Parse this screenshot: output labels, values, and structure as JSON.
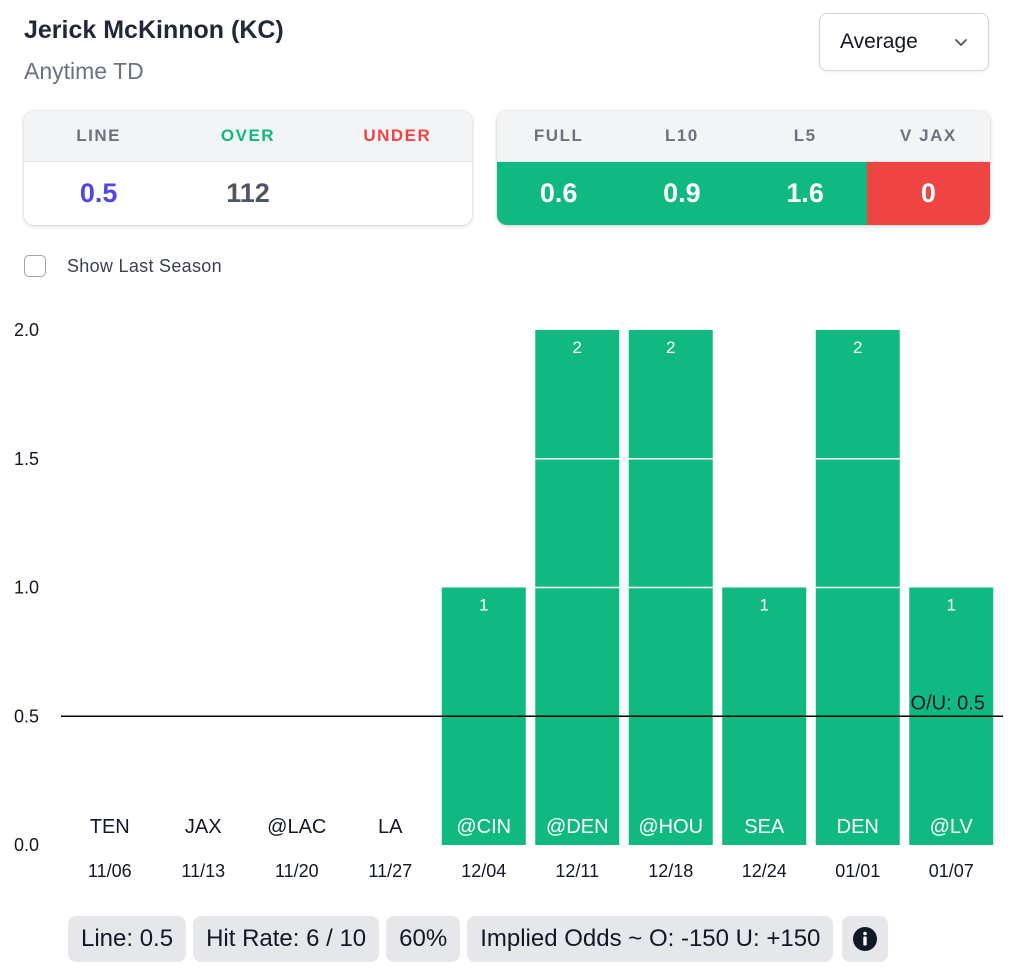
{
  "header": {
    "player_name": "Jerick McKinnon (KC)",
    "market": "Anytime TD",
    "dropdown_value": "Average",
    "dropdown_icon": "chevron-down-icon"
  },
  "line_card": {
    "headers": [
      "LINE",
      "OVER",
      "UNDER"
    ],
    "values": [
      "0.5",
      "112",
      ""
    ]
  },
  "avg_card": {
    "headers": [
      "FULL",
      "L10",
      "L5",
      "V JAX"
    ],
    "values": [
      "0.6",
      "0.9",
      "1.6",
      "0"
    ]
  },
  "show_last_season": {
    "label": "Show Last Season",
    "checked": false
  },
  "colors": {
    "green": "#10b981",
    "red": "#ef4444",
    "line_value": "#4f46e5"
  },
  "chart_data": {
    "type": "bar",
    "categories": [
      "TEN",
      "JAX",
      "@LAC",
      "LA",
      "@CIN",
      "@DEN",
      "@HOU",
      "SEA",
      "DEN",
      "@LV"
    ],
    "dates": [
      "11/06",
      "11/13",
      "11/20",
      "11/27",
      "12/04",
      "12/11",
      "12/18",
      "12/24",
      "01/01",
      "01/07"
    ],
    "values": [
      0,
      0,
      0,
      0,
      1,
      2,
      2,
      1,
      2,
      1
    ],
    "ylim": [
      0,
      2
    ],
    "yticks": [
      "0.0",
      "0.5",
      "1.0",
      "1.5",
      "2.0"
    ],
    "threshold": 0.5,
    "threshold_label": "O/U: 0.5",
    "grid": false
  },
  "footer": {
    "line": "Line: 0.5",
    "hit_rate": "Hit Rate: 6 / 10",
    "percent": "60%",
    "implied_odds": "Implied Odds ~ O: -150 U: +150",
    "info_icon": "info-icon"
  }
}
